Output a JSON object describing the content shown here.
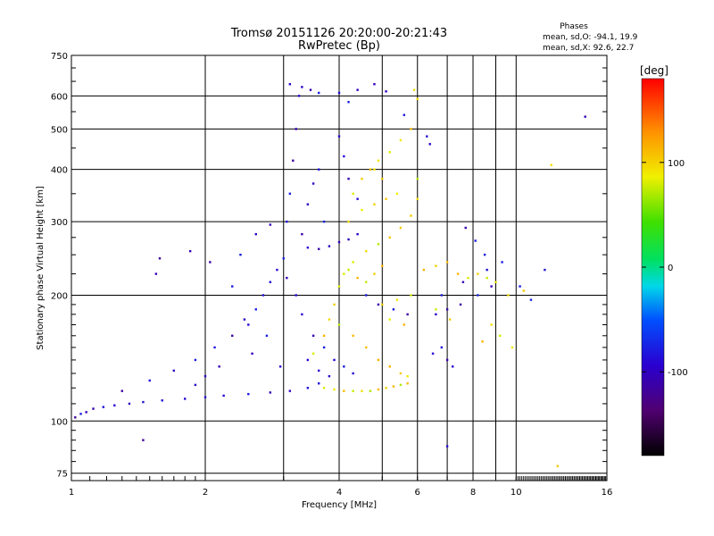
{
  "chart_data": {
    "type": "scatter",
    "title": "Tromsø 20151126 20:20:00-20:21:43",
    "subtitle": "RwPretec (Bp)",
    "xlabel": "Frequency [MHz]",
    "ylabel": "Stationary phase Virtual Height [km]",
    "x_scale": "log",
    "y_scale": "log",
    "xlim": [
      1,
      16
    ],
    "ylim": [
      72,
      750
    ],
    "x_ticks": [
      "1",
      "2",
      "4",
      "6",
      "8",
      "10",
      "16"
    ],
    "x_tick_values": [
      1,
      2,
      4,
      6,
      8,
      10,
      16
    ],
    "y_ticks": [
      "75",
      "100",
      "200",
      "300",
      "400",
      "500",
      "600",
      "750"
    ],
    "y_tick_values": [
      75,
      100,
      200,
      300,
      400,
      500,
      600,
      750
    ],
    "grid": true,
    "stats": {
      "title": "Phases",
      "line_o": "mean, sd,O: -94.1, 19.9",
      "line_x": "mean, sd,X:  92.6, 22.7"
    },
    "colorbar": {
      "label": "[deg]",
      "range": [
        -180,
        180
      ],
      "ticks": [
        "100",
        "0",
        "-100"
      ],
      "tick_values": [
        100,
        0,
        -100
      ]
    },
    "series": [
      {
        "mode": "O",
        "phase_mean": -94.1,
        "phase_sd": 19.9,
        "points": [
          [
            1.02,
            102
          ],
          [
            1.05,
            104
          ],
          [
            1.08,
            105
          ],
          [
            1.12,
            107
          ],
          [
            1.18,
            108
          ],
          [
            1.25,
            109
          ],
          [
            1.35,
            110
          ],
          [
            1.45,
            111
          ],
          [
            1.6,
            112
          ],
          [
            1.8,
            113
          ],
          [
            2.0,
            114
          ],
          [
            2.2,
            115
          ],
          [
            2.5,
            116
          ],
          [
            2.8,
            117
          ],
          [
            3.1,
            118
          ],
          [
            3.4,
            120
          ],
          [
            3.6,
            123
          ],
          [
            1.3,
            118
          ],
          [
            1.5,
            125
          ],
          [
            1.7,
            132
          ],
          [
            1.9,
            140
          ],
          [
            2.1,
            150
          ],
          [
            2.3,
            160
          ],
          [
            2.5,
            170
          ],
          [
            2.6,
            185
          ],
          [
            2.7,
            200
          ],
          [
            2.8,
            215
          ],
          [
            2.9,
            230
          ],
          [
            3.0,
            245
          ],
          [
            2.4,
            250
          ],
          [
            2.6,
            280
          ],
          [
            2.8,
            295
          ],
          [
            2.3,
            210
          ],
          [
            2.45,
            175
          ],
          [
            2.15,
            135
          ],
          [
            2.0,
            128
          ],
          [
            1.9,
            122
          ],
          [
            2.55,
            145
          ],
          [
            2.75,
            160
          ],
          [
            2.95,
            135
          ],
          [
            3.05,
            300
          ],
          [
            3.1,
            350
          ],
          [
            3.15,
            420
          ],
          [
            3.2,
            500
          ],
          [
            3.25,
            600
          ],
          [
            3.1,
            640
          ],
          [
            3.3,
            630
          ],
          [
            3.45,
            620
          ],
          [
            3.6,
            610
          ],
          [
            3.3,
            280
          ],
          [
            3.4,
            330
          ],
          [
            3.5,
            370
          ],
          [
            3.6,
            400
          ],
          [
            3.7,
            300
          ],
          [
            3.4,
            260
          ],
          [
            3.6,
            258
          ],
          [
            3.8,
            262
          ],
          [
            4.0,
            268
          ],
          [
            4.2,
            272
          ],
          [
            4.4,
            280
          ],
          [
            3.05,
            220
          ],
          [
            3.2,
            200
          ],
          [
            3.3,
            180
          ],
          [
            3.5,
            160
          ],
          [
            3.7,
            150
          ],
          [
            3.9,
            140
          ],
          [
            4.1,
            135
          ],
          [
            4.3,
            130
          ],
          [
            3.4,
            140
          ],
          [
            3.6,
            132
          ],
          [
            3.8,
            128
          ],
          [
            4.0,
            610
          ],
          [
            4.2,
            580
          ],
          [
            4.0,
            480
          ],
          [
            4.1,
            430
          ],
          [
            4.2,
            380
          ],
          [
            4.4,
            340
          ],
          [
            4.4,
            620
          ],
          [
            4.8,
            640
          ],
          [
            5.1,
            615
          ],
          [
            5.6,
            540
          ],
          [
            4.6,
            200
          ],
          [
            4.9,
            190
          ],
          [
            5.3,
            185
          ],
          [
            5.7,
            180
          ],
          [
            6.6,
            180
          ],
          [
            7.0,
            185
          ],
          [
            7.5,
            190
          ],
          [
            8.2,
            200
          ],
          [
            8.8,
            210
          ],
          [
            6.8,
            150
          ],
          [
            7.0,
            140
          ],
          [
            7.2,
            135
          ],
          [
            6.5,
            145
          ],
          [
            7.7,
            290
          ],
          [
            8.1,
            270
          ],
          [
            8.5,
            250
          ],
          [
            9.3,
            240
          ],
          [
            10.2,
            210
          ],
          [
            10.8,
            195
          ],
          [
            11.6,
            230
          ],
          [
            1.55,
            225
          ],
          [
            1.58,
            245
          ],
          [
            1.85,
            255
          ],
          [
            2.05,
            240
          ],
          [
            1.45,
            90
          ],
          [
            7.0,
            87
          ],
          [
            14.3,
            535
          ],
          [
            6.3,
            480
          ],
          [
            6.4,
            460
          ],
          [
            8.6,
            230
          ],
          [
            7.6,
            215
          ],
          [
            6.8,
            200
          ]
        ]
      },
      {
        "mode": "X",
        "phase_mean": 92.6,
        "phase_sd": 22.7,
        "points": [
          [
            3.7,
            120
          ],
          [
            3.9,
            119
          ],
          [
            4.1,
            118
          ],
          [
            4.3,
            118
          ],
          [
            4.5,
            118
          ],
          [
            4.7,
            118
          ],
          [
            4.9,
            119
          ],
          [
            5.1,
            120
          ],
          [
            5.3,
            121
          ],
          [
            5.5,
            122
          ],
          [
            5.7,
            123
          ],
          [
            3.5,
            145
          ],
          [
            3.7,
            160
          ],
          [
            3.8,
            175
          ],
          [
            3.9,
            190
          ],
          [
            4.0,
            210
          ],
          [
            4.1,
            225
          ],
          [
            4.3,
            240
          ],
          [
            4.6,
            255
          ],
          [
            4.9,
            265
          ],
          [
            5.2,
            275
          ],
          [
            5.5,
            290
          ],
          [
            5.8,
            310
          ],
          [
            6.0,
            340
          ],
          [
            6.0,
            380
          ],
          [
            4.2,
            230
          ],
          [
            4.4,
            220
          ],
          [
            4.6,
            215
          ],
          [
            4.8,
            225
          ],
          [
            5.0,
            235
          ],
          [
            4.0,
            170
          ],
          [
            4.3,
            160
          ],
          [
            4.6,
            150
          ],
          [
            4.9,
            140
          ],
          [
            5.2,
            135
          ],
          [
            5.5,
            130
          ],
          [
            5.7,
            128
          ],
          [
            4.3,
            350
          ],
          [
            4.5,
            380
          ],
          [
            4.7,
            400
          ],
          [
            4.9,
            420
          ],
          [
            5.2,
            440
          ],
          [
            5.5,
            470
          ],
          [
            5.8,
            500
          ],
          [
            4.2,
            300
          ],
          [
            4.5,
            320
          ],
          [
            4.8,
            330
          ],
          [
            5.1,
            340
          ],
          [
            5.4,
            350
          ],
          [
            5.0,
            190
          ],
          [
            5.4,
            195
          ],
          [
            5.8,
            200
          ],
          [
            5.2,
            175
          ],
          [
            5.6,
            170
          ],
          [
            6.2,
            230
          ],
          [
            6.6,
            235
          ],
          [
            7.0,
            240
          ],
          [
            7.4,
            225
          ],
          [
            7.8,
            220
          ],
          [
            8.2,
            225
          ],
          [
            8.6,
            220
          ],
          [
            9.0,
            215
          ],
          [
            9.6,
            200
          ],
          [
            10.4,
            205
          ],
          [
            8.4,
            155
          ],
          [
            8.8,
            170
          ],
          [
            9.2,
            160
          ],
          [
            9.8,
            150
          ],
          [
            6.6,
            185
          ],
          [
            7.1,
            175
          ],
          [
            5.9,
            620
          ],
          [
            6.0,
            590
          ],
          [
            12.0,
            410
          ],
          [
            12.4,
            78
          ],
          [
            4.8,
            400
          ],
          [
            5.0,
            380
          ]
        ]
      }
    ]
  }
}
